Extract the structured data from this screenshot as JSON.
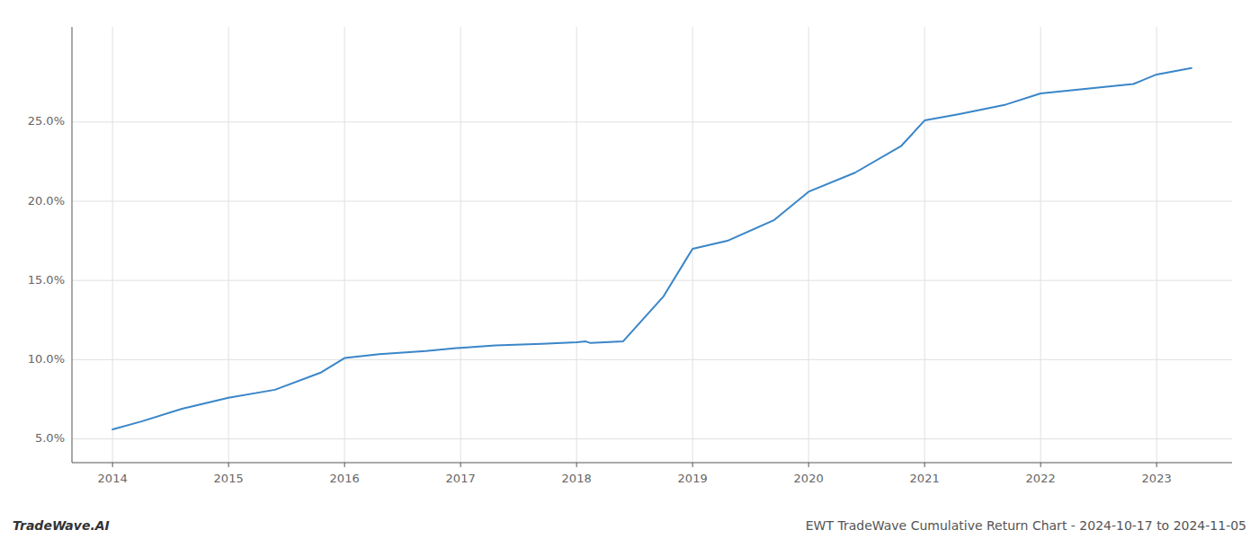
{
  "chart_data": {
    "type": "line",
    "title": "EWT TradeWave Cumulative Return Chart - 2024-10-17 to 2024-11-05",
    "annotations": [
      "TradeWave.AI"
    ],
    "x": [
      2014.0,
      2014.25,
      2014.6,
      2015.0,
      2015.4,
      2015.8,
      2016.0,
      2016.3,
      2016.7,
      2017.0,
      2017.3,
      2017.7,
      2018.0,
      2018.08,
      2018.12,
      2018.4,
      2018.75,
      2019.0,
      2019.3,
      2019.7,
      2020.0,
      2020.4,
      2020.8,
      2021.0,
      2021.3,
      2021.7,
      2022.0,
      2022.4,
      2022.8,
      2023.0,
      2023.3
    ],
    "values": [
      5.6,
      6.1,
      6.9,
      7.6,
      8.1,
      9.2,
      10.1,
      10.35,
      10.55,
      10.75,
      10.9,
      11.0,
      11.1,
      11.15,
      11.05,
      11.15,
      14.0,
      17.0,
      17.5,
      18.8,
      20.6,
      21.8,
      23.5,
      25.1,
      25.5,
      26.1,
      26.8,
      27.1,
      27.4,
      28.0,
      28.4
    ],
    "color": "#3a86c8",
    "xlim": [
      2013.65,
      2023.65
    ],
    "xticks": [
      2014,
      2015,
      2016,
      2017,
      2018,
      2019,
      2020,
      2021,
      2022,
      2023
    ],
    "ylim": [
      3.5,
      31.0
    ],
    "yticks": [
      {
        "value": 5.0,
        "label": "5.0%"
      },
      {
        "value": 10.0,
        "label": "10.0%"
      },
      {
        "value": 15.0,
        "label": "15.0%"
      },
      {
        "value": 20.0,
        "label": "20.0%"
      },
      {
        "value": 25.0,
        "label": "25.0%"
      }
    ],
    "grid": true
  }
}
